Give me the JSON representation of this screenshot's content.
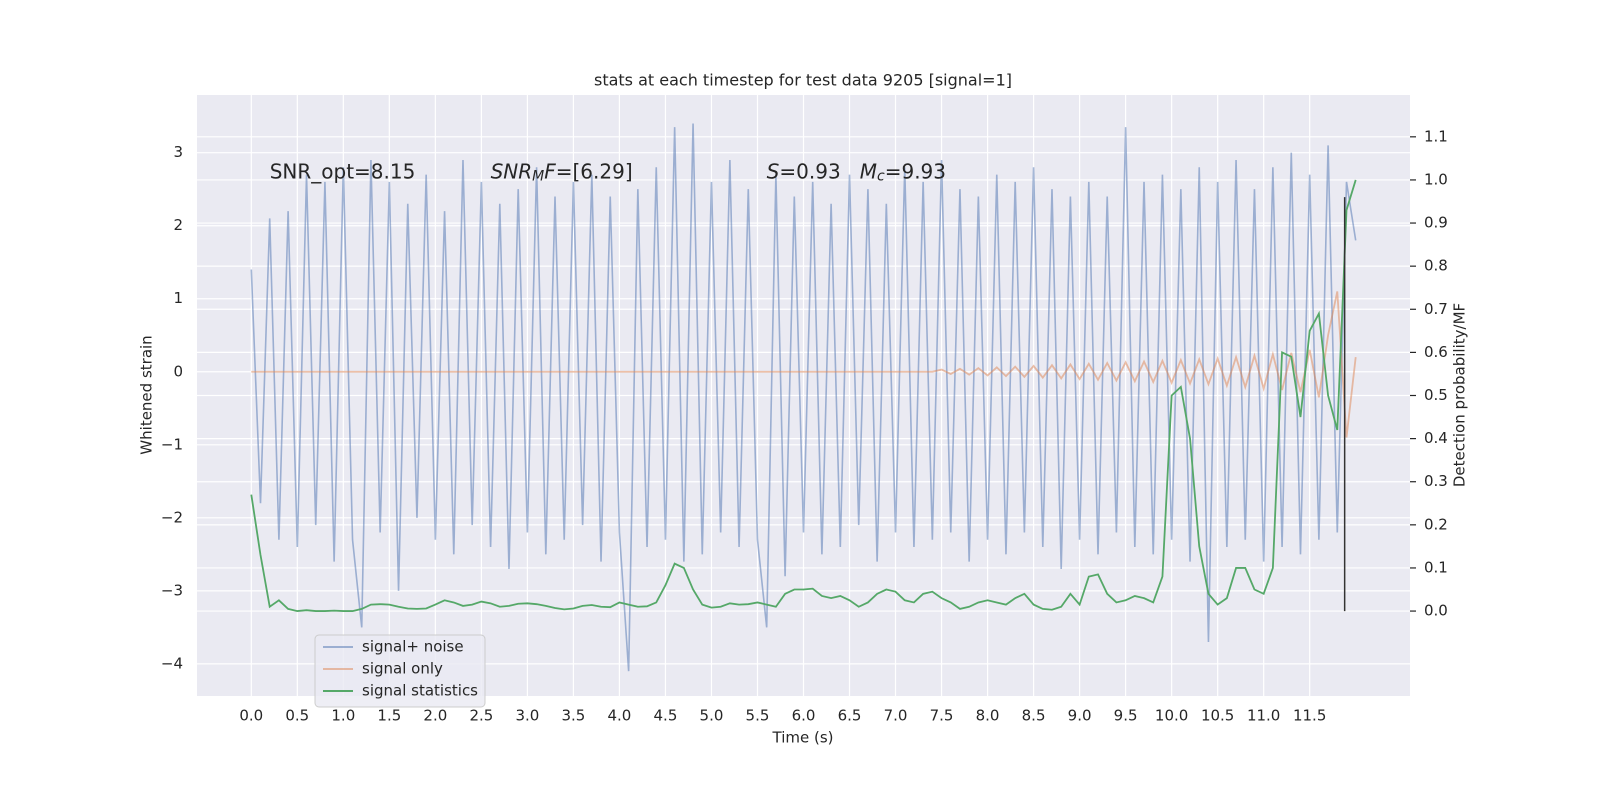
{
  "chart_data": {
    "type": "line",
    "title": "stats at each timestep for test data 9205 [signal=1]",
    "xlabel": "Time (s)",
    "ylabel": "Whitened strain",
    "y2label": "Detection probability/MF",
    "x": [
      0,
      0.1,
      0.2,
      0.3,
      0.4,
      0.5,
      0.6,
      0.7,
      0.8,
      0.9,
      1,
      1.1,
      1.2,
      1.3,
      1.4,
      1.5,
      1.6,
      1.7,
      1.8,
      1.9,
      2,
      2.1,
      2.2,
      2.3,
      2.4,
      2.5,
      2.6,
      2.7,
      2.8,
      2.9,
      3,
      3.1,
      3.2,
      3.3,
      3.4,
      3.5,
      3.6,
      3.7,
      3.8,
      3.9,
      4,
      4.1,
      4.2,
      4.3,
      4.4,
      4.5,
      4.6,
      4.7,
      4.8,
      4.9,
      5,
      5.1,
      5.2,
      5.3,
      5.4,
      5.5,
      5.6,
      5.7,
      5.8,
      5.9,
      6,
      6.1,
      6.2,
      6.3,
      6.4,
      6.5,
      6.6,
      6.7,
      6.8,
      6.9,
      7,
      7.1,
      7.2,
      7.3,
      7.4,
      7.5,
      7.6,
      7.7,
      7.8,
      7.9,
      8,
      8.1,
      8.2,
      8.3,
      8.4,
      8.5,
      8.6,
      8.7,
      8.8,
      8.9,
      9,
      9.1,
      9.2,
      9.3,
      9.4,
      9.5,
      9.6,
      9.7,
      9.8,
      9.9,
      10,
      10.1,
      10.2,
      10.3,
      10.4,
      10.5,
      10.6,
      10.7,
      10.8,
      10.9,
      11,
      11.1,
      11.2,
      11.3,
      11.4,
      11.5,
      11.6,
      11.7,
      11.8,
      11.9,
      12
    ],
    "series": [
      {
        "name": "signal+ noise",
        "color": "#4c72b0",
        "opacity": 0.5,
        "values": [
          1.4,
          -1.8,
          2.1,
          -2.3,
          2.2,
          -2.4,
          2.7,
          -2.1,
          2.6,
          -2.6,
          2.8,
          -2.3,
          -3.5,
          2.9,
          -2.2,
          2.6,
          -3.0,
          2.3,
          -2.0,
          2.7,
          -2.3,
          2.2,
          -2.5,
          2.9,
          -2.1,
          2.6,
          -2.4,
          2.3,
          -2.7,
          2.5,
          -2.2,
          2.8,
          -2.5,
          2.4,
          -2.3,
          2.6,
          -2.1,
          2.7,
          -2.6,
          2.4,
          -2.2,
          -4.1,
          2.5,
          -2.4,
          2.8,
          -2.3,
          3.35,
          -2.6,
          3.4,
          -2.5,
          2.6,
          -2.2,
          2.9,
          -2.4,
          2.5,
          -2.3,
          -3.5,
          2.7,
          -2.8,
          2.4,
          -2.2,
          2.6,
          -2.5,
          2.3,
          -2.4,
          2.7,
          -2.1,
          2.5,
          -2.6,
          2.3,
          -2.2,
          2.8,
          -2.4,
          2.6,
          -2.3,
          2.9,
          -2.2,
          2.5,
          -2.6,
          2.4,
          -2.3,
          2.7,
          -2.5,
          2.6,
          -2.2,
          2.8,
          -2.4,
          2.5,
          -2.7,
          2.4,
          -2.3,
          2.6,
          -2.5,
          2.4,
          -2.2,
          3.35,
          -2.4,
          2.6,
          -2.5,
          2.7,
          -2.3,
          2.5,
          -2.6,
          2.8,
          -3.7,
          2.6,
          -2.4,
          2.9,
          -2.3,
          2.5,
          -2.6,
          2.8,
          -2.4,
          3.0,
          -2.5,
          2.7,
          -2.3,
          3.1,
          -2.2,
          2.6,
          1.8
        ]
      },
      {
        "name": "signal only",
        "color": "#dd8452",
        "opacity": 0.5,
        "values": [
          0,
          0,
          0,
          0,
          0,
          0,
          0,
          0,
          0,
          0,
          0,
          0,
          0,
          0,
          0,
          0,
          0,
          0,
          0,
          0,
          0,
          0,
          0,
          0,
          0,
          0,
          0,
          0,
          0,
          0,
          0,
          0,
          0,
          0,
          0,
          0,
          0,
          0,
          0,
          0,
          0,
          0,
          0,
          0,
          0,
          0,
          0,
          0,
          0,
          0,
          0,
          0,
          0,
          0,
          0,
          0,
          0,
          0,
          0,
          0,
          0,
          0,
          0,
          0,
          0,
          0,
          0,
          0,
          0,
          0,
          0,
          0,
          0,
          0,
          0,
          0.03,
          -0.03,
          0.04,
          -0.04,
          0.05,
          -0.05,
          0.06,
          -0.06,
          0.07,
          -0.07,
          0.08,
          -0.08,
          0.09,
          -0.09,
          0.1,
          -0.1,
          0.11,
          -0.11,
          0.12,
          -0.12,
          0.13,
          -0.13,
          0.14,
          -0.14,
          0.15,
          -0.15,
          0.16,
          -0.16,
          0.17,
          -0.17,
          0.18,
          -0.19,
          0.2,
          -0.21,
          0.22,
          -0.23,
          0.24,
          -0.25,
          0.26,
          -0.28,
          0.3,
          -0.35,
          0.5,
          1.1,
          -0.9,
          0.2
        ]
      },
      {
        "name": "signal statistics",
        "color": "#55a868",
        "opacity": 1,
        "axis": "y2",
        "values": [
          0.27,
          0.13,
          0.01,
          0.025,
          0.005,
          0.0,
          0.002,
          0.0,
          0.0,
          0.001,
          0.0,
          0.0,
          0.005,
          0.015,
          0.016,
          0.015,
          0.01,
          0.006,
          0.005,
          0.006,
          0.015,
          0.025,
          0.02,
          0.012,
          0.015,
          0.022,
          0.018,
          0.01,
          0.012,
          0.017,
          0.018,
          0.016,
          0.012,
          0.007,
          0.004,
          0.006,
          0.012,
          0.014,
          0.01,
          0.009,
          0.02,
          0.015,
          0.01,
          0.011,
          0.02,
          0.06,
          0.11,
          0.1,
          0.05,
          0.015,
          0.008,
          0.01,
          0.018,
          0.015,
          0.016,
          0.02,
          0.015,
          0.01,
          0.04,
          0.05,
          0.05,
          0.052,
          0.035,
          0.03,
          0.035,
          0.025,
          0.01,
          0.02,
          0.04,
          0.05,
          0.045,
          0.025,
          0.02,
          0.04,
          0.045,
          0.03,
          0.02,
          0.005,
          0.01,
          0.02,
          0.025,
          0.02,
          0.015,
          0.03,
          0.04,
          0.015,
          0.005,
          0.003,
          0.01,
          0.04,
          0.015,
          0.08,
          0.085,
          0.04,
          0.02,
          0.025,
          0.035,
          0.03,
          0.02,
          0.08,
          0.5,
          0.52,
          0.4,
          0.15,
          0.04,
          0.015,
          0.03,
          0.1,
          0.1,
          0.05,
          0.04,
          0.1,
          0.6,
          0.59,
          0.45,
          0.65,
          0.69,
          0.5,
          0.42,
          0.93,
          1.0
        ]
      }
    ],
    "vline": {
      "x": 11.88,
      "y2": [
        0,
        0.96
      ],
      "color": "#333333"
    },
    "annotations": [
      {
        "x": 0.2,
        "y": 2.73,
        "parts": [
          {
            "text": "SNR_opt=8.15"
          }
        ]
      },
      {
        "x": 2.6,
        "y": 2.73,
        "parts": [
          {
            "text": "SNR",
            "style": "italic"
          },
          {
            "text": "M",
            "style": "sub"
          },
          {
            "text": "F",
            "style": "italic"
          },
          {
            "text": "=[6.29]"
          }
        ]
      },
      {
        "x": 5.6,
        "y": 2.73,
        "parts": [
          {
            "text": "S",
            "style": "italic"
          },
          {
            "text": "=0.93   "
          },
          {
            "text": "M",
            "style": "italic"
          },
          {
            "text": "c",
            "style": "sub"
          },
          {
            "text": "=9.93"
          }
        ]
      }
    ],
    "xlim": [
      -0.59,
      12.59
    ],
    "ylim": [
      -4.44,
      3.79
    ],
    "y2lim": [
      -0.197,
      1.197
    ],
    "xticks": [
      {
        "value": 0,
        "label": "0.0"
      },
      {
        "value": 0.5,
        "label": "0.5"
      },
      {
        "value": 1,
        "label": "1.0"
      },
      {
        "value": 1.5,
        "label": "1.5"
      },
      {
        "value": 2,
        "label": "2.0"
      },
      {
        "value": 2.5,
        "label": "2.5"
      },
      {
        "value": 3,
        "label": "3.0"
      },
      {
        "value": 3.5,
        "label": "3.5"
      },
      {
        "value": 4,
        "label": "4.0"
      },
      {
        "value": 4.5,
        "label": "4.5"
      },
      {
        "value": 5,
        "label": "5.0"
      },
      {
        "value": 5.5,
        "label": "5.5"
      },
      {
        "value": 6,
        "label": "6.0"
      },
      {
        "value": 6.5,
        "label": "6.5"
      },
      {
        "value": 7,
        "label": "7.0"
      },
      {
        "value": 7.5,
        "label": "7.5"
      },
      {
        "value": 8,
        "label": "8.0"
      },
      {
        "value": 8.5,
        "label": "8.5"
      },
      {
        "value": 9,
        "label": "9.0"
      },
      {
        "value": 9.5,
        "label": "9.5"
      },
      {
        "value": 10,
        "label": "10.0"
      },
      {
        "value": 10.5,
        "label": "10.5"
      },
      {
        "value": 11,
        "label": "11.0"
      },
      {
        "value": 11.5,
        "label": "11.5"
      }
    ],
    "yticks": [
      3,
      2,
      1,
      0,
      {
        "value": -1,
        "label": "−1"
      },
      {
        "value": -2,
        "label": "−2"
      },
      {
        "value": -3,
        "label": "−3"
      },
      {
        "value": -4,
        "label": "−4"
      }
    ],
    "y2ticks": [
      {
        "value": 0,
        "label": "0.0"
      },
      {
        "value": 0.1,
        "label": "0.1"
      },
      {
        "value": 0.2,
        "label": "0.2"
      },
      {
        "value": 0.3,
        "label": "0.3"
      },
      {
        "value": 0.4,
        "label": "0.4"
      },
      {
        "value": 0.5,
        "label": "0.5"
      },
      {
        "value": 0.6,
        "label": "0.6"
      },
      {
        "value": 0.7,
        "label": "0.7"
      },
      {
        "value": 0.8,
        "label": "0.8"
      },
      {
        "value": 0.9,
        "label": "0.9"
      },
      {
        "value": 1,
        "label": "1.0"
      },
      {
        "value": 1.1,
        "label": "1.1"
      }
    ],
    "grid": true,
    "legend": "lower left"
  }
}
